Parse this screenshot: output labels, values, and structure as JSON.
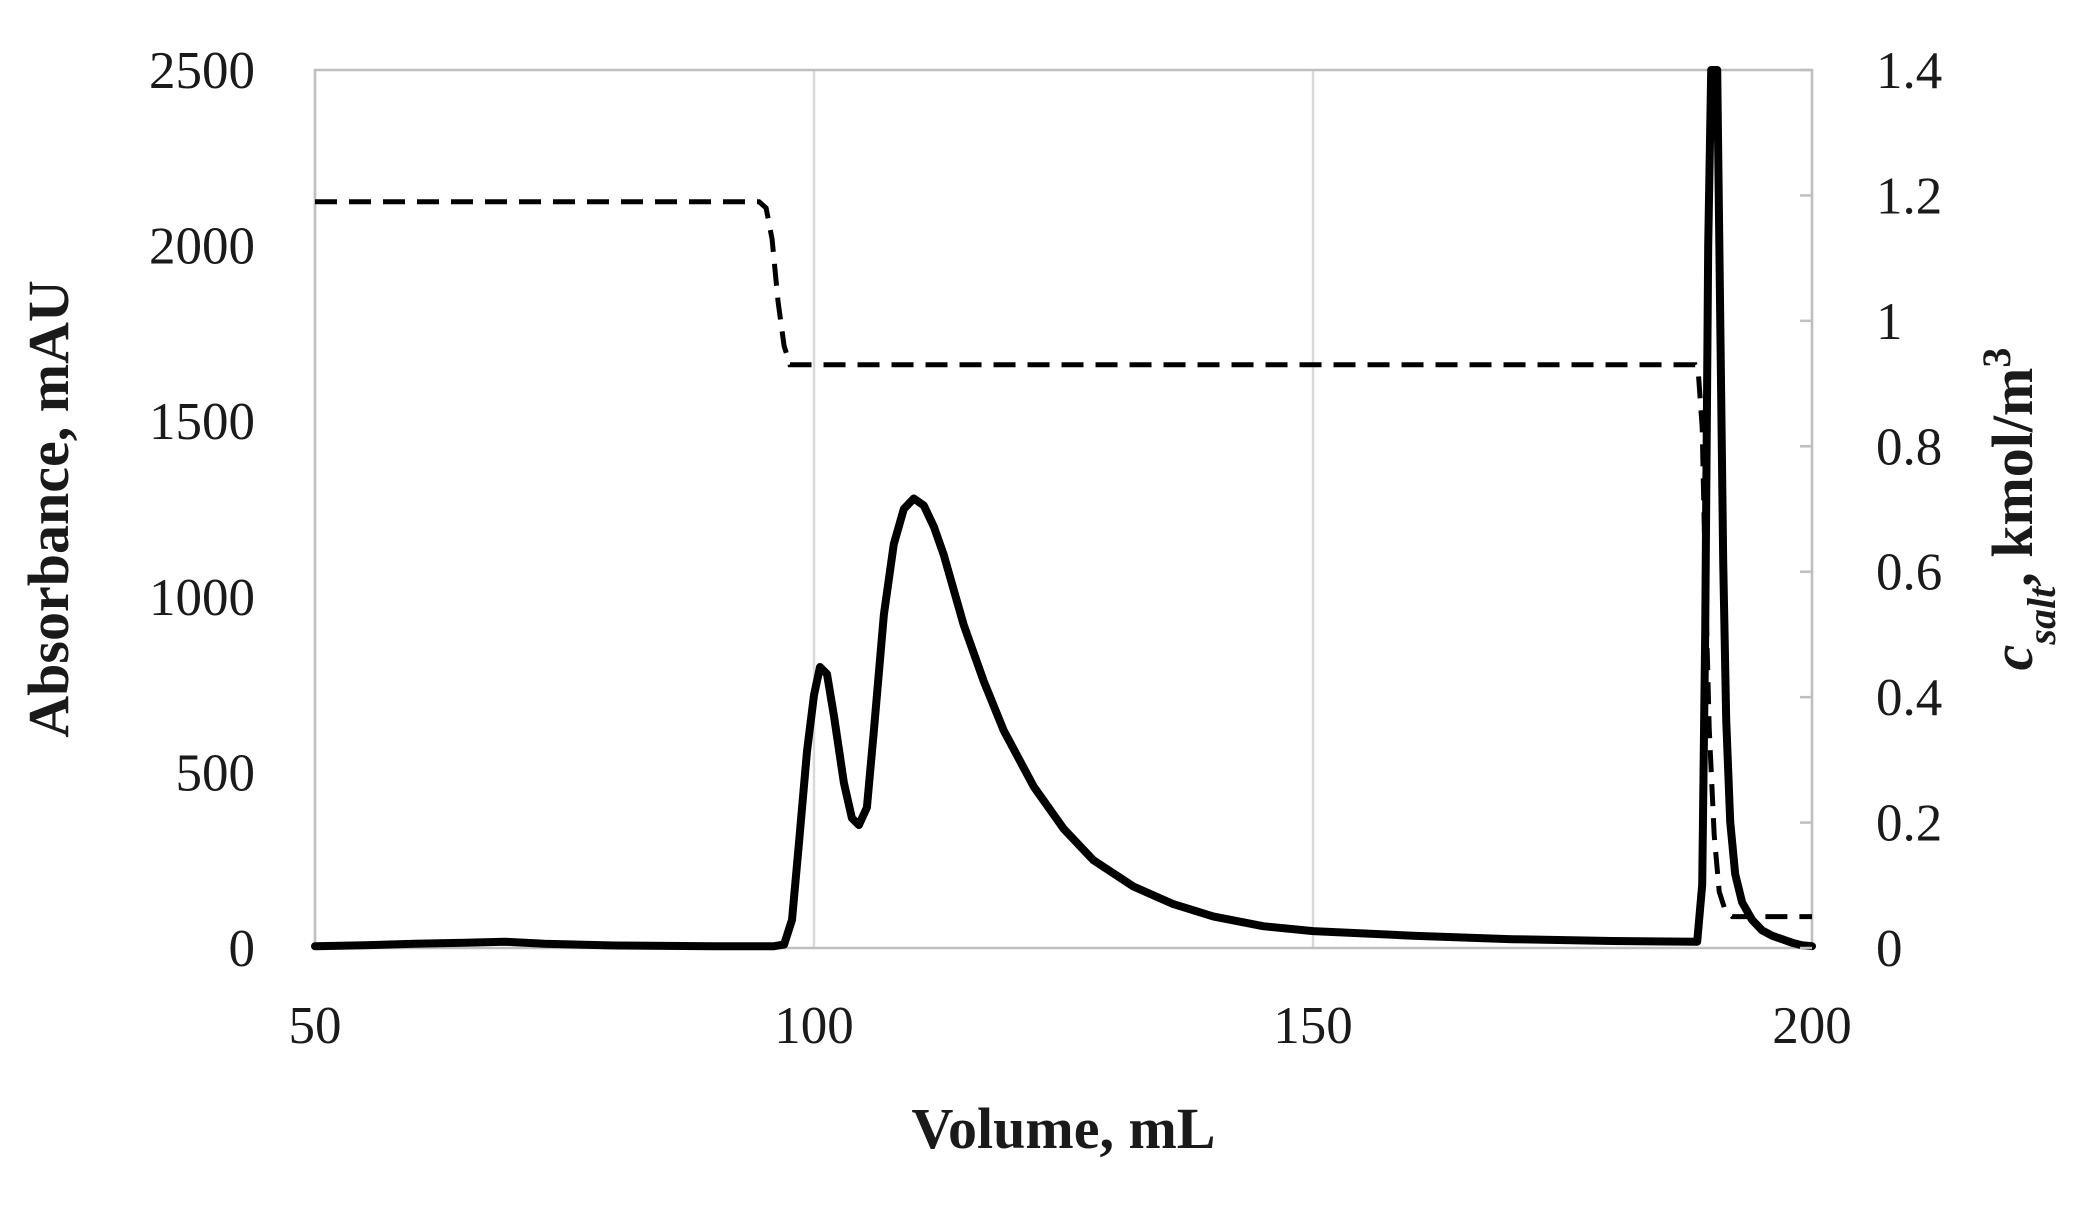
{
  "chart_data": {
    "type": "line",
    "title": "",
    "xlabel": "Volume, mL",
    "ylabel": "Absorbance, mAU",
    "y2label": {
      "symbol": "c",
      "subscript": "salt",
      "rest": ", kmol/m",
      "superscript": "3"
    },
    "xlim": [
      50,
      200
    ],
    "ylim": [
      0,
      2500
    ],
    "y2lim": [
      0,
      1.4
    ],
    "x_ticks": [
      "50",
      "100",
      "150",
      "200"
    ],
    "y_ticks": [
      "0",
      "500",
      "1000",
      "1500",
      "2000",
      "2500"
    ],
    "y2_ticks": [
      "0",
      "0.2",
      "0.4",
      "0.6",
      "0.8",
      "1",
      "1.2",
      "1.4"
    ],
    "grid": "vertical",
    "legend": "none",
    "series": [
      {
        "axis": "left",
        "style": "solid",
        "x": [
          50,
          55,
          60,
          65,
          69,
          73,
          80,
          90,
          96,
          97,
          97.8,
          98.5,
          99.3,
          100,
          100.6,
          101.3,
          102,
          103,
          103.8,
          104.5,
          105.3,
          106,
          107,
          108,
          109,
          110,
          111,
          112,
          113,
          114,
          115,
          117,
          119,
          122,
          125,
          128,
          132,
          136,
          140,
          145,
          150,
          160,
          170,
          180,
          188.5,
          189,
          189.3,
          189.6,
          189.9,
          190.2,
          190.5,
          190.8,
          191.1,
          191.4,
          191.8,
          192.3,
          193,
          194,
          195,
          196,
          197,
          198,
          199,
          200
        ],
        "values": [
          5,
          8,
          12,
          15,
          18,
          12,
          7,
          5,
          5,
          10,
          80,
          300,
          560,
          720,
          800,
          780,
          660,
          470,
          370,
          350,
          400,
          620,
          950,
          1150,
          1250,
          1280,
          1260,
          1200,
          1120,
          1020,
          920,
          760,
          620,
          460,
          340,
          250,
          175,
          125,
          90,
          62,
          48,
          35,
          25,
          20,
          18,
          180,
          900,
          2000,
          2600,
          2600,
          2500,
          1800,
          1100,
          650,
          360,
          210,
          130,
          80,
          50,
          35,
          25,
          15,
          8,
          5
        ]
      },
      {
        "axis": "right",
        "style": "dashed",
        "x": [
          50,
          94.5,
          95.2,
          95.8,
          96.4,
          97,
          97.6,
          98.2,
          188.3,
          188.6,
          189,
          189.3,
          189.7,
          190.2,
          190.7,
          191.3,
          192,
          200
        ],
        "values": [
          1.19,
          1.19,
          1.18,
          1.13,
          1.03,
          0.96,
          0.93,
          0.93,
          0.93,
          0.92,
          0.83,
          0.6,
          0.35,
          0.18,
          0.09,
          0.06,
          0.05,
          0.05
        ]
      }
    ]
  }
}
